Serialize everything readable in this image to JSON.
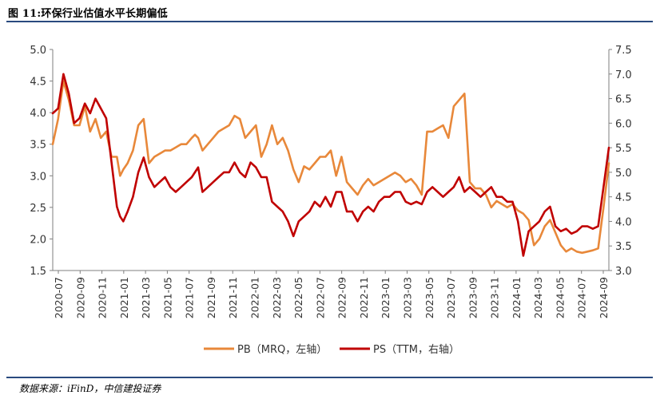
{
  "title": "图 11:环保行业估值水平长期偏低",
  "source": "数据来源：iFinD，中信建投证券",
  "colors": {
    "pb": "#e8883a",
    "ps": "#c00000",
    "rule": "#2a4a7f",
    "axis": "#7f7f7f"
  },
  "chart_data": {
    "type": "line",
    "title": "环保行业估值水平长期偏低",
    "y_left": {
      "min": 1.5,
      "max": 5.0,
      "ticks": [
        "1.5",
        "2.0",
        "2.5",
        "3.0",
        "3.5",
        "4.0",
        "4.5",
        "5.0"
      ]
    },
    "y_right": {
      "min": 3.0,
      "max": 7.5,
      "ticks": [
        "3.0",
        "3.5",
        "4.0",
        "4.5",
        "5.0",
        "5.5",
        "6.0",
        "6.5",
        "7.0",
        "7.5"
      ]
    },
    "x_ticks": [
      "2020-07",
      "2020-09",
      "2020-11",
      "2021-01",
      "2021-03",
      "2021-05",
      "2021-07",
      "2021-09",
      "2021-11",
      "2022-01",
      "2022-03",
      "2022-05",
      "2022-07",
      "2022-09",
      "2022-11",
      "2023-01",
      "2023-03",
      "2023-05",
      "2023-07",
      "2023-09",
      "2023-11",
      "2024-01",
      "2024-03",
      "2024-05",
      "2024-07",
      "2024-09"
    ],
    "x_range": [
      0,
      52
    ],
    "legend": [
      "PB（MRQ，左轴）",
      "PS（TTM，右轴）"
    ],
    "series": [
      {
        "name": "PB（MRQ，左轴）",
        "axis": "left",
        "x": [
          0,
          0.5,
          1,
          1.5,
          2,
          2.5,
          3,
          3.5,
          4,
          4.5,
          5,
          5.5,
          6,
          6.3,
          6.6,
          7,
          7.5,
          8,
          8.5,
          9,
          9.5,
          10,
          10.5,
          11,
          11.5,
          12,
          12.5,
          13,
          13.3,
          13.6,
          14,
          14.5,
          15,
          15.5,
          16,
          16.5,
          17,
          17.5,
          18,
          18.5,
          19,
          19.5,
          20,
          20.5,
          21,
          21.5,
          22,
          22.5,
          23,
          23.5,
          24,
          24.5,
          25,
          25.5,
          26,
          26.5,
          27,
          27.5,
          28,
          28.5,
          29,
          29.5,
          30,
          30.5,
          31,
          31.5,
          32,
          32.5,
          33,
          33.5,
          34,
          34.5,
          35,
          35.5,
          36,
          36.5,
          37,
          37.5,
          38,
          38.5,
          39,
          39.5,
          40,
          40.5,
          41,
          41.5,
          42,
          42.5,
          43,
          43.5,
          44,
          44.5,
          45,
          45.5,
          46,
          46.5,
          47,
          47.5,
          48,
          48.5,
          49,
          49.5,
          50,
          50.5,
          51,
          51.5,
          52
        ],
        "values": [
          3.5,
          3.9,
          4.5,
          4.2,
          3.8,
          3.8,
          4.1,
          3.7,
          3.9,
          3.6,
          3.7,
          3.3,
          3.3,
          3.0,
          3.1,
          3.2,
          3.4,
          3.8,
          3.9,
          3.2,
          3.3,
          3.35,
          3.4,
          3.4,
          3.45,
          3.5,
          3.5,
          3.6,
          3.65,
          3.6,
          3.4,
          3.5,
          3.6,
          3.7,
          3.75,
          3.8,
          3.95,
          3.9,
          3.6,
          3.7,
          3.8,
          3.3,
          3.5,
          3.8,
          3.5,
          3.6,
          3.4,
          3.1,
          2.9,
          3.15,
          3.1,
          3.2,
          3.3,
          3.3,
          3.4,
          3.0,
          3.3,
          2.9,
          2.8,
          2.7,
          2.85,
          2.95,
          2.85,
          2.9,
          2.95,
          3.0,
          3.05,
          3.0,
          2.9,
          2.95,
          2.85,
          2.7,
          3.7,
          3.7,
          3.75,
          3.8,
          3.6,
          4.1,
          4.2,
          4.3,
          2.9,
          2.8,
          2.8,
          2.7,
          2.5,
          2.6,
          2.55,
          2.5,
          2.55,
          2.45,
          2.4,
          2.3,
          1.9,
          2.0,
          2.2,
          2.3,
          2.1,
          1.9,
          1.8,
          1.85,
          1.8,
          1.78,
          1.8,
          1.82,
          1.85,
          2.5,
          3.2
        ]
      },
      {
        "name": "PS（TTM，右轴）",
        "axis": "right",
        "x": [
          0,
          0.5,
          1,
          1.5,
          2,
          2.5,
          3,
          3.5,
          4,
          4.5,
          5,
          5.5,
          6,
          6.3,
          6.6,
          7,
          7.5,
          8,
          8.5,
          9,
          9.5,
          10,
          10.5,
          11,
          11.5,
          12,
          12.5,
          13,
          13.3,
          13.6,
          14,
          14.5,
          15,
          15.5,
          16,
          16.5,
          17,
          17.5,
          18,
          18.5,
          19,
          19.5,
          20,
          20.5,
          21,
          21.5,
          22,
          22.5,
          23,
          23.5,
          24,
          24.5,
          25,
          25.5,
          26,
          26.5,
          27,
          27.5,
          28,
          28.5,
          29,
          29.5,
          30,
          30.5,
          31,
          31.5,
          32,
          32.5,
          33,
          33.5,
          34,
          34.5,
          35,
          35.5,
          36,
          36.5,
          37,
          37.5,
          38,
          38.5,
          39,
          39.5,
          40,
          40.5,
          41,
          41.5,
          42,
          42.5,
          43,
          43.5,
          44,
          44.5,
          45,
          45.5,
          46,
          46.5,
          47,
          47.5,
          48,
          48.5,
          49,
          49.5,
          50,
          50.5,
          51,
          51.5,
          52
        ],
        "values": [
          6.2,
          6.3,
          7.0,
          6.6,
          6.0,
          6.1,
          6.4,
          6.2,
          6.5,
          6.3,
          6.1,
          5.2,
          4.3,
          4.1,
          4.0,
          4.2,
          4.5,
          5.0,
          5.3,
          4.9,
          4.7,
          4.8,
          4.9,
          4.7,
          4.6,
          4.7,
          4.8,
          4.9,
          5.0,
          5.1,
          4.6,
          4.7,
          4.8,
          4.9,
          5.0,
          5.0,
          5.2,
          5.0,
          4.9,
          5.2,
          5.1,
          4.9,
          4.9,
          4.4,
          4.3,
          4.2,
          4.0,
          3.7,
          4.0,
          4.1,
          4.2,
          4.4,
          4.3,
          4.5,
          4.3,
          4.6,
          4.6,
          4.2,
          4.2,
          4.0,
          4.2,
          4.3,
          4.2,
          4.4,
          4.5,
          4.5,
          4.6,
          4.6,
          4.4,
          4.35,
          4.4,
          4.35,
          4.6,
          4.7,
          4.6,
          4.5,
          4.6,
          4.7,
          4.9,
          4.6,
          4.7,
          4.6,
          4.5,
          4.6,
          4.7,
          4.5,
          4.5,
          4.4,
          4.4,
          4.0,
          3.3,
          3.8,
          3.9,
          4.0,
          4.2,
          4.3,
          3.9,
          3.8,
          3.85,
          3.75,
          3.8,
          3.9,
          3.9,
          3.85,
          3.9,
          4.7,
          5.5
        ]
      }
    ]
  }
}
